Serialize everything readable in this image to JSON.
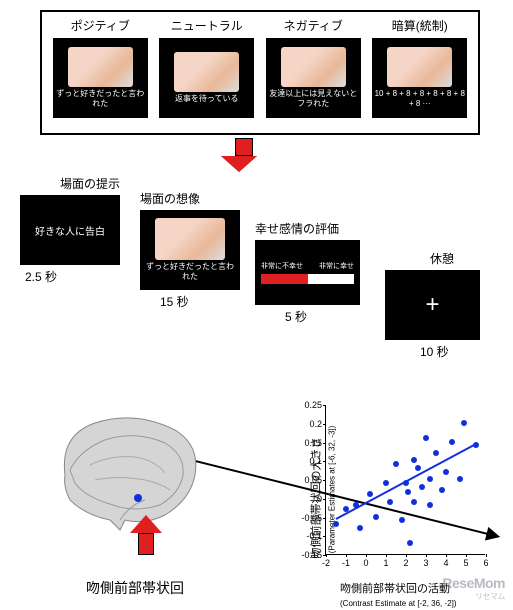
{
  "conditions": [
    {
      "label": "ポジティブ",
      "caption": "ずっと好きだったと言われた"
    },
    {
      "label": "ニュートラル",
      "caption": "返事を待っている"
    },
    {
      "label": "ネガティブ",
      "caption": "友達以上には見えないとフラれた"
    },
    {
      "label": "暗算(統制)",
      "caption": "10 + 8 + 8 + 8 + 8 + 8 + 8 + 8 ···"
    }
  ],
  "timeline": {
    "step1": {
      "label": "場面の提示",
      "text": "好きな人に告白",
      "duration": "2.5 秒"
    },
    "step2": {
      "label": "場面の想像",
      "caption": "ずっと好きだったと言われた",
      "duration": "15 秒"
    },
    "step3": {
      "label": "幸せ感情の評価",
      "left": "非常に不幸せ",
      "right": "非常に幸せ",
      "duration": "5 秒"
    },
    "step4": {
      "label": "休憩",
      "text": "+",
      "duration": "10 秒"
    }
  },
  "brain": {
    "label": "吻側前部帯状回"
  },
  "scatter": {
    "y_label": "吻側前部帯状回の大きさ",
    "y_sublabel": "(Parameter Estimates at [-6, 32, -3])",
    "x_label": "吻側前部帯状回の活動",
    "x_sublabel": "(Contrast Estimate at [-2, 36, -2])",
    "xlim": [
      -2,
      6
    ],
    "xticks": [
      -2,
      -1,
      0,
      1,
      2,
      3,
      4,
      5,
      6
    ],
    "ylim": [
      -0.15,
      0.25
    ],
    "yticks": [
      -0.15,
      -0.1,
      -0.05,
      0,
      0.05,
      0.1,
      0.15,
      0.2,
      0.25
    ],
    "dot_color": "#1030e0",
    "line_color": "#1030e0",
    "points": [
      [
        -1.5,
        -0.07
      ],
      [
        -1.0,
        -0.03
      ],
      [
        -0.5,
        -0.02
      ],
      [
        -0.3,
        -0.08
      ],
      [
        0.2,
        0.01
      ],
      [
        0.5,
        -0.05
      ],
      [
        1.0,
        0.04
      ],
      [
        1.2,
        -0.01
      ],
      [
        1.5,
        0.09
      ],
      [
        1.8,
        -0.06
      ],
      [
        2.0,
        0.04
      ],
      [
        2.1,
        0.015
      ],
      [
        2.2,
        -0.12
      ],
      [
        2.4,
        0.1
      ],
      [
        2.4,
        -0.01
      ],
      [
        2.6,
        0.08
      ],
      [
        2.8,
        0.03
      ],
      [
        3.0,
        0.16
      ],
      [
        3.2,
        0.05
      ],
      [
        3.2,
        -0.02
      ],
      [
        3.5,
        0.12
      ],
      [
        3.8,
        0.02
      ],
      [
        4.0,
        0.07
      ],
      [
        4.3,
        0.15
      ],
      [
        4.9,
        0.2
      ],
      [
        4.7,
        0.05
      ],
      [
        5.5,
        0.14
      ]
    ],
    "trend": {
      "x1": -1.5,
      "y1": -0.05,
      "x2": 5.5,
      "y2": 0.15
    }
  },
  "watermark": {
    "main": "ReseMom",
    "sub": "リセマム"
  }
}
